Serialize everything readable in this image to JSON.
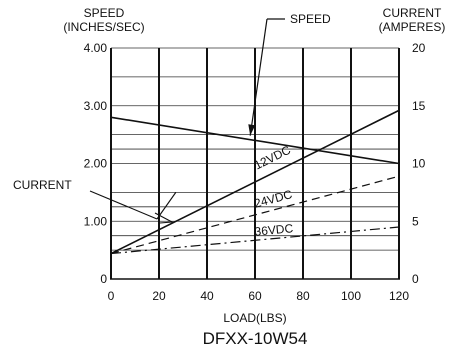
{
  "chart_data": {
    "type": "line",
    "title": "DFXX-10W54",
    "xlabel": "LOAD(LBS)",
    "y_left": {
      "label_lines": [
        "SPEED",
        "(INCHES/SEC)"
      ],
      "range": [
        0,
        4
      ],
      "ticks": [
        "0",
        "1.00",
        "2.00",
        "3.00",
        "4.00"
      ]
    },
    "y_right": {
      "label_lines": [
        "CURRENT",
        "(AMPERES)"
      ],
      "range": [
        0,
        20
      ],
      "ticks": [
        "0",
        "5",
        "10",
        "15",
        "20"
      ]
    },
    "x": {
      "range": [
        0,
        120
      ],
      "ticks": [
        "0",
        "20",
        "40",
        "60",
        "80",
        "100",
        "120"
      ]
    },
    "grid": {
      "vertical_lines": [
        0,
        20,
        40,
        60,
        80,
        100,
        120
      ],
      "horizontal_lines_speed": [
        0.5,
        0.75,
        1.0,
        1.25,
        1.5,
        2.0,
        2.25,
        2.5,
        3.0,
        3.5,
        4.0
      ],
      "speed_grid_is_on": true
    },
    "series": [
      {
        "name": "SPEED",
        "axis": "left",
        "style": "solid",
        "x": [
          0,
          120
        ],
        "y": [
          2.8,
          2.0
        ]
      },
      {
        "name": "12VDC",
        "axis": "right",
        "style": "solid",
        "x": [
          0,
          120
        ],
        "y": [
          2.2,
          14.6
        ]
      },
      {
        "name": "24VDC",
        "axis": "right",
        "style": "dashed",
        "x": [
          0,
          120
        ],
        "y": [
          2.2,
          8.9
        ]
      },
      {
        "name": "36VDC",
        "axis": "right",
        "style": "dash-dot",
        "x": [
          0,
          120
        ],
        "y": [
          2.2,
          4.5
        ]
      }
    ],
    "series_labels": [
      {
        "text": "12VDC",
        "series": "12VDC",
        "x": 68,
        "y": 10.2,
        "angle_from_series": true
      },
      {
        "text": "24VDC",
        "series": "24VDC",
        "x": 68,
        "y": 6.6,
        "angle_from_series": true
      },
      {
        "text": "36VDC",
        "series": "36VDC",
        "x": 68,
        "y": 3.9,
        "angle_from_series": true
      }
    ],
    "annotations": [
      {
        "text": "SPEED",
        "points_to_series": "SPEED",
        "target_x": 58,
        "target_y": 2.43
      },
      {
        "text": "CURRENT",
        "points_to_series": "12VDC",
        "target_x": 27,
        "target_y": 7.5
      }
    ]
  }
}
